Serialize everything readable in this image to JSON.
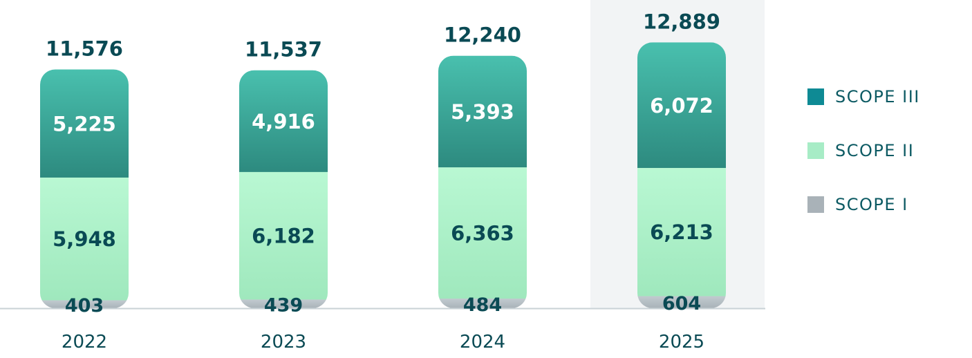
{
  "chart_data": {
    "type": "bar",
    "stacked": true,
    "categories": [
      "2022",
      "2023",
      "2024",
      "2025"
    ],
    "series": [
      {
        "name": "SCOPE I",
        "values": [
          403,
          439,
          484,
          604
        ],
        "color": "#a9b2b8"
      },
      {
        "name": "SCOPE II",
        "values": [
          5948,
          6182,
          6363,
          6213
        ],
        "color": "#a7ecc6"
      },
      {
        "name": "SCOPE III",
        "values": [
          5225,
          4916,
          5393,
          6072
        ],
        "color": "#0e8a94"
      }
    ],
    "totals": [
      11576,
      11537,
      12240,
      12889
    ],
    "value_labels": {
      "SCOPE I": [
        "403",
        "439",
        "484",
        "604"
      ],
      "SCOPE II": [
        "5,948",
        "6,182",
        "6,363",
        "6,213"
      ],
      "SCOPE III": [
        "5,225",
        "4,916",
        "5,393",
        "6,072"
      ],
      "totals": [
        "11,576",
        "11,537",
        "12,240",
        "12,889"
      ]
    },
    "highlighted_category": "2025",
    "legend": {
      "position": "right",
      "entries": [
        "SCOPE III",
        "SCOPE II",
        "SCOPE I"
      ]
    },
    "grid": false,
    "title": "",
    "xlabel": "",
    "ylabel": ""
  },
  "colors": {
    "scope3_top": "#49c0ae",
    "scope3_bottom": "#2d8a7f",
    "scope2_top": "#b9f8d3",
    "scope2_bottom": "#9fe8bd",
    "scope1_top": "#c2cbd0",
    "scope1_bottom": "#a8b2b8",
    "label_dark": "#0a4a54",
    "label_light": "#ffffff",
    "axis_text": "#0a4a54",
    "baseline": "#c9d2d6",
    "highlight_bg": "#f2f4f5"
  }
}
